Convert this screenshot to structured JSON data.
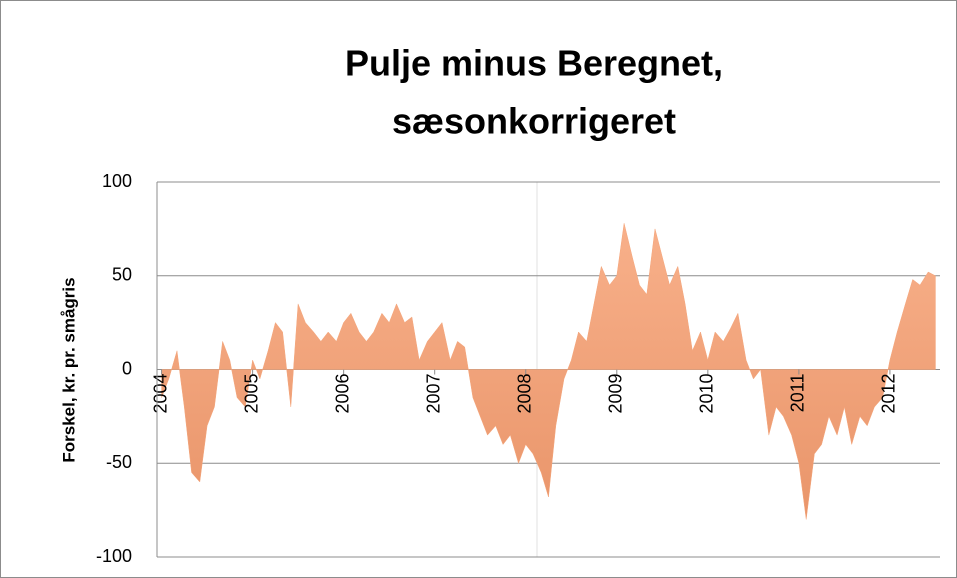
{
  "chart_data": {
    "type": "area",
    "title": [
      "Pulje minus Beregnet,",
      "sæsonkorrigeret"
    ],
    "ylabel": "Forskel, kr. pr. smågris",
    "color": "#f4a57a",
    "xlim": [
      2003.95,
      2012.55
    ],
    "xticks": [
      2004,
      2005,
      2006,
      2007,
      2008,
      2009,
      2010,
      2011,
      2012
    ],
    "ylim": [
      -100,
      100
    ],
    "yticks": [
      -100,
      -50,
      0,
      50,
      100
    ],
    "grid": true,
    "x": [
      2004.0,
      2004.08,
      2004.17,
      2004.25,
      2004.33,
      2004.42,
      2004.5,
      2004.58,
      2004.67,
      2004.75,
      2004.83,
      2004.92,
      2005.0,
      2005.08,
      2005.17,
      2005.25,
      2005.33,
      2005.42,
      2005.5,
      2005.58,
      2005.67,
      2005.75,
      2005.83,
      2005.92,
      2006.0,
      2006.08,
      2006.17,
      2006.25,
      2006.33,
      2006.42,
      2006.5,
      2006.58,
      2006.67,
      2006.75,
      2006.83,
      2006.92,
      2007.0,
      2007.08,
      2007.17,
      2007.25,
      2007.33,
      2007.42,
      2007.5,
      2007.58,
      2007.67,
      2007.75,
      2007.83,
      2007.92,
      2008.0,
      2008.08,
      2008.17,
      2008.25,
      2008.33,
      2008.42,
      2008.5,
      2008.58,
      2008.67,
      2008.75,
      2008.83,
      2008.92,
      2009.0,
      2009.08,
      2009.17,
      2009.25,
      2009.33,
      2009.42,
      2009.5,
      2009.58,
      2009.67,
      2009.75,
      2009.83,
      2009.92,
      2010.0,
      2010.08,
      2010.17,
      2010.25,
      2010.33,
      2010.42,
      2010.5,
      2010.58,
      2010.67,
      2010.75,
      2010.83,
      2010.92,
      2011.0,
      2011.08,
      2011.17,
      2011.25,
      2011.33,
      2011.42,
      2011.5,
      2011.58,
      2011.67,
      2011.75,
      2011.83,
      2011.92,
      2012.0,
      2012.08,
      2012.17,
      2012.25,
      2012.33,
      2012.42,
      2012.5
    ],
    "values": [
      -15,
      -5,
      10,
      -20,
      -55,
      -60,
      -30,
      -20,
      15,
      5,
      -15,
      -20,
      5,
      -5,
      10,
      25,
      20,
      -20,
      35,
      25,
      20,
      15,
      20,
      15,
      25,
      30,
      20,
      15,
      20,
      30,
      25,
      35,
      25,
      28,
      5,
      15,
      20,
      25,
      5,
      15,
      12,
      -15,
      -25,
      -35,
      -30,
      -40,
      -35,
      -50,
      -40,
      -45,
      -55,
      -68,
      -30,
      -5,
      5,
      20,
      15,
      35,
      55,
      45,
      50,
      78,
      60,
      45,
      40,
      75,
      60,
      45,
      55,
      35,
      10,
      20,
      5,
      20,
      15,
      22,
      30,
      5,
      -5,
      0,
      -35,
      -20,
      -25,
      -35,
      -50,
      -80,
      -45,
      -40,
      -25,
      -35,
      -20,
      -40,
      -25,
      -30,
      -20,
      -15,
      5,
      20,
      35,
      48,
      45,
      52,
      50
    ]
  }
}
